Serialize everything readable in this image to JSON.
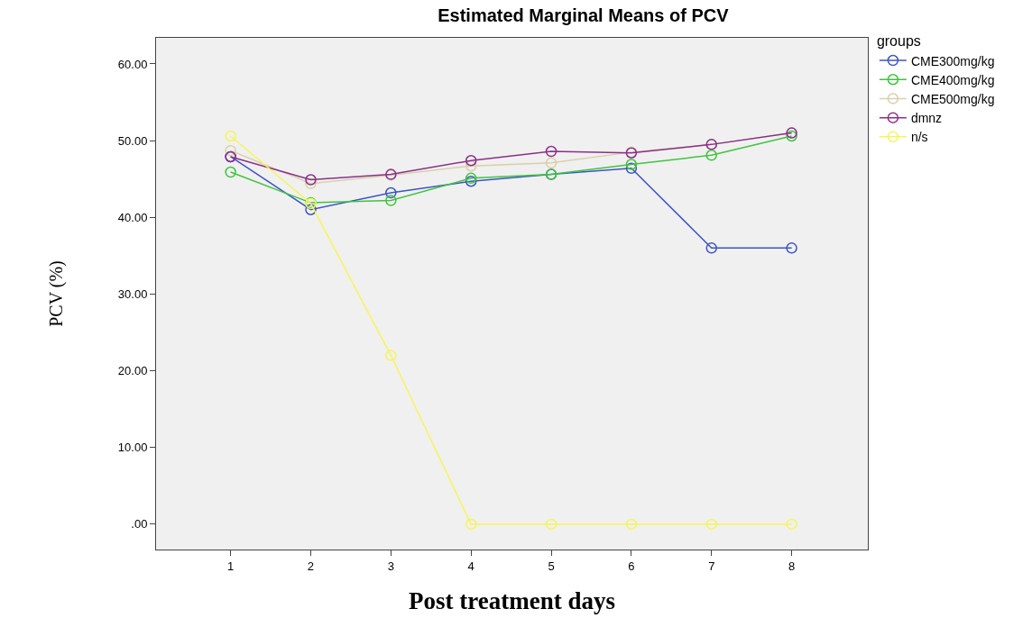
{
  "chart_data": {
    "type": "line",
    "title": "Estimated Marginal Means of PCV",
    "xlabel": "Post treatment days",
    "ylabel": "PCV (%)",
    "legend_title": "groups",
    "legend": "right",
    "marker": "circle",
    "grid": false,
    "x": [
      1,
      2,
      3,
      4,
      5,
      6,
      7,
      8
    ],
    "xlim": [
      0.07,
      8.95
    ],
    "xticks": [
      1,
      2,
      3,
      4,
      5,
      6,
      7,
      8
    ],
    "ylim": [
      -3.3,
      63.4
    ],
    "yticks": [
      {
        "value": 0,
        "label": ".00"
      },
      {
        "value": 10,
        "label": "10.00"
      },
      {
        "value": 20,
        "label": "20.00"
      },
      {
        "value": 30,
        "label": "30.00"
      },
      {
        "value": 40,
        "label": "40.00"
      },
      {
        "value": 50,
        "label": "50.00"
      },
      {
        "value": 60,
        "label": "60.00"
      }
    ],
    "series": [
      {
        "name": "CME300mg/kg",
        "color": "#3d55c0",
        "values": [
          47.9,
          41.0,
          43.2,
          44.7,
          45.6,
          46.4,
          36.0,
          36.0
        ]
      },
      {
        "name": "CME400mg/kg",
        "color": "#3fc43f",
        "values": [
          45.9,
          41.9,
          42.2,
          45.1,
          45.6,
          46.9,
          48.1,
          50.6
        ]
      },
      {
        "name": "CME500mg/kg",
        "color": "#d9d0a8",
        "values": [
          48.7,
          44.4,
          45.5,
          46.7,
          47.1,
          48.5,
          49.5,
          51.0
        ]
      },
      {
        "name": "dmnz",
        "color": "#8b2f8b",
        "values": [
          47.9,
          44.9,
          45.6,
          47.4,
          48.6,
          48.4,
          49.5,
          51.0
        ]
      },
      {
        "name": "n/s",
        "color": "#f5f55a",
        "values": [
          50.6,
          41.8,
          22.0,
          0,
          0,
          0,
          0,
          0
        ]
      }
    ]
  }
}
